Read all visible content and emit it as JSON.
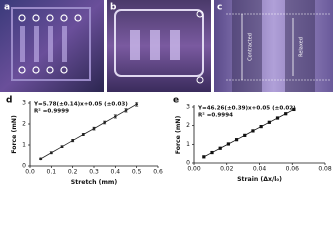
{
  "panel_labels": [
    "a",
    "b",
    "c",
    "d",
    "e"
  ],
  "photo_annotations": [
    "Contracted",
    "Relaxed"
  ],
  "chart_data": [
    {
      "type": "scatter",
      "marker": "circle",
      "color": "#222222",
      "x_label": "Stretch (mm)",
      "y_label": "Force (mN)",
      "annotations": [
        "Y=5.78(±0.14)x+0.05 (±0.03)",
        "R² =0.9999"
      ],
      "xlim": [
        0,
        0.6
      ],
      "ylim": [
        0,
        3
      ],
      "xticks": [
        {
          "value": 0,
          "label": "0.0"
        },
        0.1,
        0.2,
        0.3,
        0.4,
        0.5,
        0.6
      ],
      "yticks": [
        0,
        1,
        2,
        3
      ],
      "x": [
        0.05,
        0.1,
        0.15,
        0.2,
        0.25,
        0.3,
        0.35,
        0.4,
        0.45,
        0.5
      ],
      "series": [
        {
          "values": [
            0.34,
            0.63,
            0.92,
            1.21,
            1.5,
            1.78,
            2.07,
            2.36,
            2.65,
            2.94
          ],
          "errors": [
            0.04,
            0.05,
            0.05,
            0.06,
            0.06,
            0.07,
            0.07,
            0.08,
            0.08,
            0.09
          ]
        }
      ]
    },
    {
      "type": "scatter",
      "marker": "square",
      "color": "#111111",
      "x_label": "Strain (Δx/l₀)",
      "y_label": "Force (mN)",
      "annotations": [
        "Y=46.26(±0.39)x+0.05 (±0.02)",
        "R² =0.9994"
      ],
      "xlim": [
        0,
        0.08
      ],
      "ylim": [
        0,
        3
      ],
      "xticks": [
        {
          "value": 0,
          "label": "0.00"
        },
        0.02,
        0.04,
        0.06,
        0.08
      ],
      "yticks": [
        0,
        1,
        2,
        3
      ],
      "x": [
        0.006,
        0.011,
        0.016,
        0.021,
        0.026,
        0.031,
        0.036,
        0.041,
        0.046,
        0.051,
        0.056,
        0.061
      ],
      "series": [
        {
          "values": [
            0.33,
            0.56,
            0.79,
            1.02,
            1.25,
            1.48,
            1.72,
            1.95,
            2.18,
            2.41,
            2.64,
            2.87
          ]
        }
      ]
    }
  ]
}
